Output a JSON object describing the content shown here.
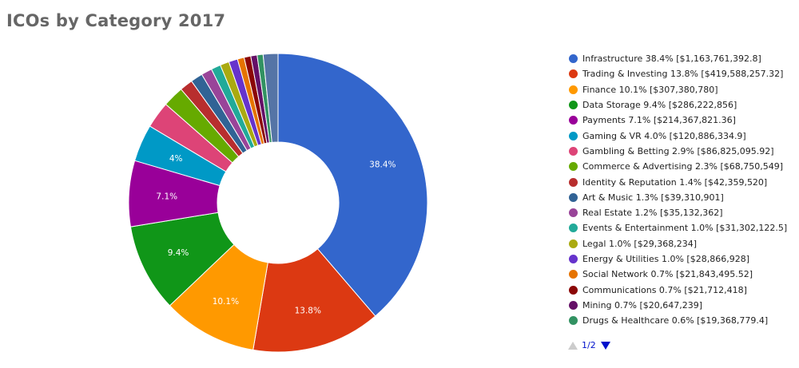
{
  "chart_data": {
    "type": "pie",
    "title": "ICOs by Category 2017",
    "series": [
      {
        "name": "Infrastructure",
        "percent_label": "38.4%",
        "value_label": "$1,163,761,392.8",
        "value": 1163761392.8,
        "slice_label": "38.4%",
        "color": "#3366cc"
      },
      {
        "name": "Trading & Investing",
        "percent_label": "13.8%",
        "value_label": "$419,588,257.32",
        "value": 419588257.32,
        "slice_label": "13.8%",
        "color": "#dc3912"
      },
      {
        "name": "Finance",
        "percent_label": "10.1%",
        "value_label": "$307,380,780",
        "value": 307380780,
        "slice_label": "10.1%",
        "color": "#ff9900"
      },
      {
        "name": "Data Storage",
        "percent_label": "9.4%",
        "value_label": "$286,222,856",
        "value": 286222856,
        "slice_label": "9.4%",
        "color": "#109618"
      },
      {
        "name": "Payments",
        "percent_label": "7.1%",
        "value_label": "$214,367,821.36",
        "value": 214367821.36,
        "slice_label": "7.1%",
        "color": "#990099"
      },
      {
        "name": "Gaming & VR",
        "percent_label": "4.0%",
        "value_label": "$120,886,334.9",
        "value": 120886334.9,
        "slice_label": "4%",
        "color": "#0099c6"
      },
      {
        "name": "Gambling & Betting",
        "percent_label": "2.9%",
        "value_label": "$86,825,095.92",
        "value": 86825095.92,
        "slice_label": "",
        "color": "#dd4477"
      },
      {
        "name": "Commerce & Advertising",
        "percent_label": "2.3%",
        "value_label": "$68,750,549",
        "value": 68750549,
        "slice_label": "",
        "color": "#66aa00"
      },
      {
        "name": "Identity & Reputation",
        "percent_label": "1.4%",
        "value_label": "$42,359,520",
        "value": 42359520,
        "slice_label": "",
        "color": "#b82e2e"
      },
      {
        "name": "Art & Music",
        "percent_label": "1.3%",
        "value_label": "$39,310,901",
        "value": 39310901,
        "slice_label": "",
        "color": "#316395"
      },
      {
        "name": "Real Estate",
        "percent_label": "1.2%",
        "value_label": "$35,132,362",
        "value": 35132362,
        "slice_label": "",
        "color": "#994499"
      },
      {
        "name": "Events & Entertainment",
        "percent_label": "1.0%",
        "value_label": "$31,302,122.5",
        "value": 31302122.5,
        "slice_label": "",
        "color": "#22aa99"
      },
      {
        "name": "Legal",
        "percent_label": "1.0%",
        "value_label": "$29,368,234",
        "value": 29368234,
        "slice_label": "",
        "color": "#aaaa11"
      },
      {
        "name": "Energy & Utilities",
        "percent_label": "1.0%",
        "value_label": "$28,866,928",
        "value": 28866928,
        "slice_label": "",
        "color": "#6633cc"
      },
      {
        "name": "Social Network",
        "percent_label": "0.7%",
        "value_label": "$21,843,495.52",
        "value": 21843495.52,
        "slice_label": "",
        "color": "#e67300"
      },
      {
        "name": "Communications",
        "percent_label": "0.7%",
        "value_label": "$21,712,418",
        "value": 21712418,
        "slice_label": "",
        "color": "#8b0707"
      },
      {
        "name": "Mining",
        "percent_label": "0.7%",
        "value_label": "$20,647,239",
        "value": 20647239,
        "slice_label": "",
        "color": "#651067"
      },
      {
        "name": "Drugs & Healthcare",
        "percent_label": "0.6%",
        "value_label": "$19,368,779.4",
        "value": 19368779.4,
        "slice_label": "",
        "color": "#329262"
      }
    ],
    "hidden_remainder_fraction": 0.016,
    "legend_position": "right"
  },
  "legend_pager": {
    "page_label": "1/2"
  }
}
